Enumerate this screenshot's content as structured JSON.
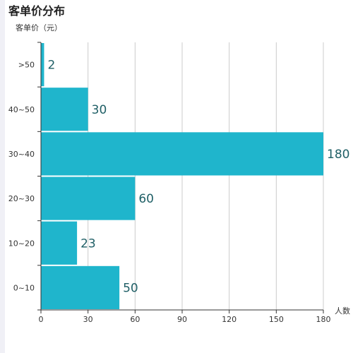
{
  "chart_data": {
    "type": "bar",
    "orientation": "horizontal",
    "title": "客单价分布",
    "ylabel": "客单价（元）",
    "xlabel": "人数",
    "categories": [
      "0~10",
      "10~20",
      "20~30",
      "30~40",
      "40~50",
      ">50"
    ],
    "values": [
      50,
      23,
      60,
      180,
      30,
      2
    ],
    "xlim": [
      0,
      180
    ],
    "xticks": [
      0,
      30,
      60,
      90,
      120,
      150,
      180
    ],
    "grid": "vertical",
    "bar_color": "#1fb5cc",
    "label_color": "#1f5f66"
  }
}
